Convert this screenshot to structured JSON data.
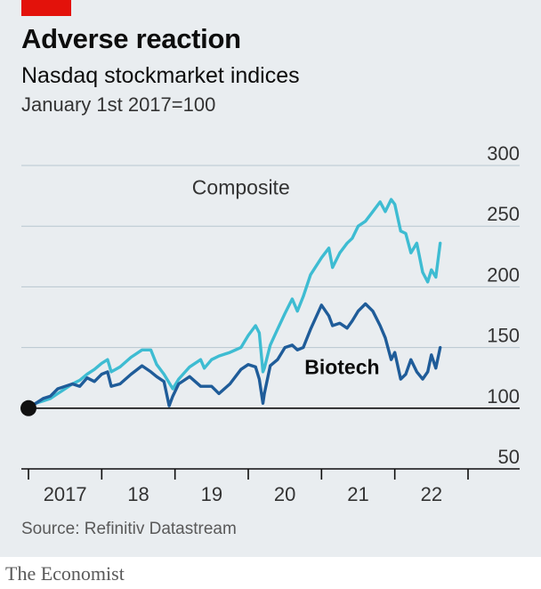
{
  "header": {
    "title": "Adverse reaction",
    "subtitle": "Nasdaq stockmarket indices",
    "note": "January 1st 2017=100"
  },
  "footer": {
    "source": "Source: Refinitiv Datastream",
    "brand": "The Economist"
  },
  "colors": {
    "background": "#e9edf0",
    "composite": "#3ebcd2",
    "biotech": "#1f5c99",
    "gridline": "#b7c6cf",
    "baseline": "#0d0d0d",
    "accent": "#e3120b"
  },
  "chart_data": {
    "type": "line",
    "ylim": [
      50,
      300
    ],
    "yticks": [
      300,
      250,
      200,
      150,
      100,
      50
    ],
    "ytick_labels": [
      "300",
      "250",
      "200",
      "150",
      "100",
      "50"
    ],
    "baseline_value": 100,
    "xlim": [
      2017.0,
      2022.62
    ],
    "xtick_years": [
      2017,
      2018,
      2019,
      2020,
      2021,
      2022,
      2023
    ],
    "xtick_labels": [
      {
        "text": "2017",
        "center": 2017.5
      },
      {
        "text": "18",
        "center": 2018.5
      },
      {
        "text": "19",
        "center": 2019.5
      },
      {
        "text": "20",
        "center": 2020.5
      },
      {
        "text": "21",
        "center": 2021.5
      },
      {
        "text": "22",
        "center": 2022.5
      }
    ],
    "series": [
      {
        "name": "Composite",
        "label_year": 2019.9,
        "label_value": 276,
        "points": [
          [
            2017.0,
            100
          ],
          [
            2017.1,
            104
          ],
          [
            2017.2,
            106
          ],
          [
            2017.3,
            108
          ],
          [
            2017.4,
            112
          ],
          [
            2017.5,
            116
          ],
          [
            2017.6,
            120
          ],
          [
            2017.7,
            123
          ],
          [
            2017.8,
            128
          ],
          [
            2017.9,
            132
          ],
          [
            2018.0,
            137
          ],
          [
            2018.08,
            140
          ],
          [
            2018.13,
            130
          ],
          [
            2018.25,
            134
          ],
          [
            2018.4,
            142
          ],
          [
            2018.55,
            148
          ],
          [
            2018.67,
            148
          ],
          [
            2018.75,
            136
          ],
          [
            2018.85,
            128
          ],
          [
            2018.97,
            116
          ],
          [
            2019.05,
            124
          ],
          [
            2019.2,
            134
          ],
          [
            2019.35,
            140
          ],
          [
            2019.4,
            133
          ],
          [
            2019.5,
            140
          ],
          [
            2019.6,
            143
          ],
          [
            2019.75,
            146
          ],
          [
            2019.9,
            150
          ],
          [
            2020.0,
            160
          ],
          [
            2020.1,
            168
          ],
          [
            2020.15,
            162
          ],
          [
            2020.2,
            130
          ],
          [
            2020.22,
            133
          ],
          [
            2020.3,
            152
          ],
          [
            2020.4,
            165
          ],
          [
            2020.5,
            178
          ],
          [
            2020.6,
            190
          ],
          [
            2020.67,
            180
          ],
          [
            2020.75,
            192
          ],
          [
            2020.85,
            210
          ],
          [
            2021.0,
            224
          ],
          [
            2021.1,
            232
          ],
          [
            2021.15,
            216
          ],
          [
            2021.25,
            228
          ],
          [
            2021.35,
            236
          ],
          [
            2021.42,
            240
          ],
          [
            2021.5,
            250
          ],
          [
            2021.6,
            254
          ],
          [
            2021.7,
            262
          ],
          [
            2021.8,
            270
          ],
          [
            2021.87,
            262
          ],
          [
            2021.95,
            272
          ],
          [
            2022.0,
            268
          ],
          [
            2022.08,
            246
          ],
          [
            2022.15,
            244
          ],
          [
            2022.22,
            228
          ],
          [
            2022.3,
            236
          ],
          [
            2022.38,
            212
          ],
          [
            2022.45,
            204
          ],
          [
            2022.5,
            214
          ],
          [
            2022.56,
            208
          ],
          [
            2022.62,
            236
          ]
        ]
      },
      {
        "name": "Biotech",
        "label_year": 2021.28,
        "label_value": 128,
        "points": [
          [
            2017.0,
            100
          ],
          [
            2017.1,
            104
          ],
          [
            2017.2,
            108
          ],
          [
            2017.3,
            110
          ],
          [
            2017.4,
            116
          ],
          [
            2017.5,
            118
          ],
          [
            2017.6,
            120
          ],
          [
            2017.7,
            118
          ],
          [
            2017.8,
            125
          ],
          [
            2017.9,
            122
          ],
          [
            2018.0,
            128
          ],
          [
            2018.08,
            130
          ],
          [
            2018.13,
            118
          ],
          [
            2018.25,
            120
          ],
          [
            2018.4,
            128
          ],
          [
            2018.55,
            135
          ],
          [
            2018.67,
            130
          ],
          [
            2018.75,
            126
          ],
          [
            2018.85,
            122
          ],
          [
            2018.92,
            102
          ],
          [
            2018.97,
            110
          ],
          [
            2019.05,
            120
          ],
          [
            2019.2,
            126
          ],
          [
            2019.35,
            118
          ],
          [
            2019.5,
            118
          ],
          [
            2019.6,
            112
          ],
          [
            2019.75,
            120
          ],
          [
            2019.9,
            132
          ],
          [
            2020.0,
            136
          ],
          [
            2020.1,
            134
          ],
          [
            2020.15,
            124
          ],
          [
            2020.2,
            104
          ],
          [
            2020.22,
            112
          ],
          [
            2020.3,
            135
          ],
          [
            2020.4,
            140
          ],
          [
            2020.5,
            150
          ],
          [
            2020.6,
            152
          ],
          [
            2020.67,
            148
          ],
          [
            2020.75,
            150
          ],
          [
            2020.85,
            165
          ],
          [
            2021.0,
            185
          ],
          [
            2021.1,
            176
          ],
          [
            2021.15,
            168
          ],
          [
            2021.25,
            170
          ],
          [
            2021.35,
            166
          ],
          [
            2021.42,
            172
          ],
          [
            2021.5,
            180
          ],
          [
            2021.6,
            186
          ],
          [
            2021.7,
            180
          ],
          [
            2021.8,
            168
          ],
          [
            2021.87,
            158
          ],
          [
            2021.95,
            140
          ],
          [
            2022.0,
            146
          ],
          [
            2022.08,
            124
          ],
          [
            2022.15,
            128
          ],
          [
            2022.22,
            140
          ],
          [
            2022.3,
            130
          ],
          [
            2022.38,
            124
          ],
          [
            2022.45,
            130
          ],
          [
            2022.5,
            144
          ],
          [
            2022.56,
            133
          ],
          [
            2022.62,
            150
          ]
        ]
      }
    ]
  }
}
